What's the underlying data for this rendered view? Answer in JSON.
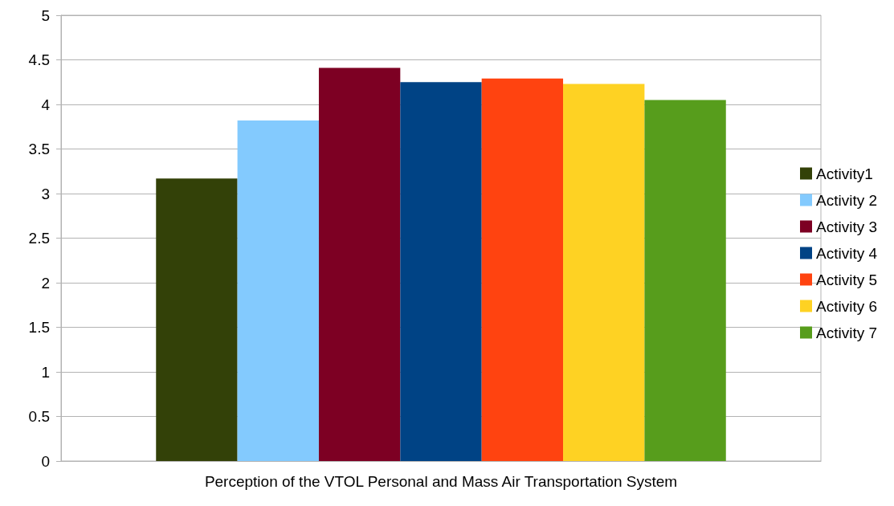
{
  "chart_data": {
    "type": "bar",
    "categories": [
      "Perception of the VTOL Personal and Mass Air Transportation System"
    ],
    "series": [
      {
        "name": "Activity1",
        "color": "#334108",
        "values": [
          3.17
        ]
      },
      {
        "name": "Activity 2",
        "color": "#83cafe",
        "values": [
          3.82
        ]
      },
      {
        "name": "Activity 3",
        "color": "#7d0023",
        "values": [
          4.41
        ]
      },
      {
        "name": "Activity 4",
        "color": "#004385",
        "values": [
          4.25
        ]
      },
      {
        "name": "Activity 5",
        "color": "#ff4310",
        "values": [
          4.29
        ]
      },
      {
        "name": "Activity 6",
        "color": "#fed223",
        "values": [
          4.23
        ]
      },
      {
        "name": "Activity 7",
        "color": "#579d1c",
        "values": [
          4.05
        ]
      }
    ],
    "ylim": [
      0,
      5
    ],
    "yticks": [
      0,
      0.5,
      1,
      1.5,
      2,
      2.5,
      3,
      3.5,
      4,
      4.5,
      5
    ],
    "grid": "y",
    "legend": "right"
  }
}
